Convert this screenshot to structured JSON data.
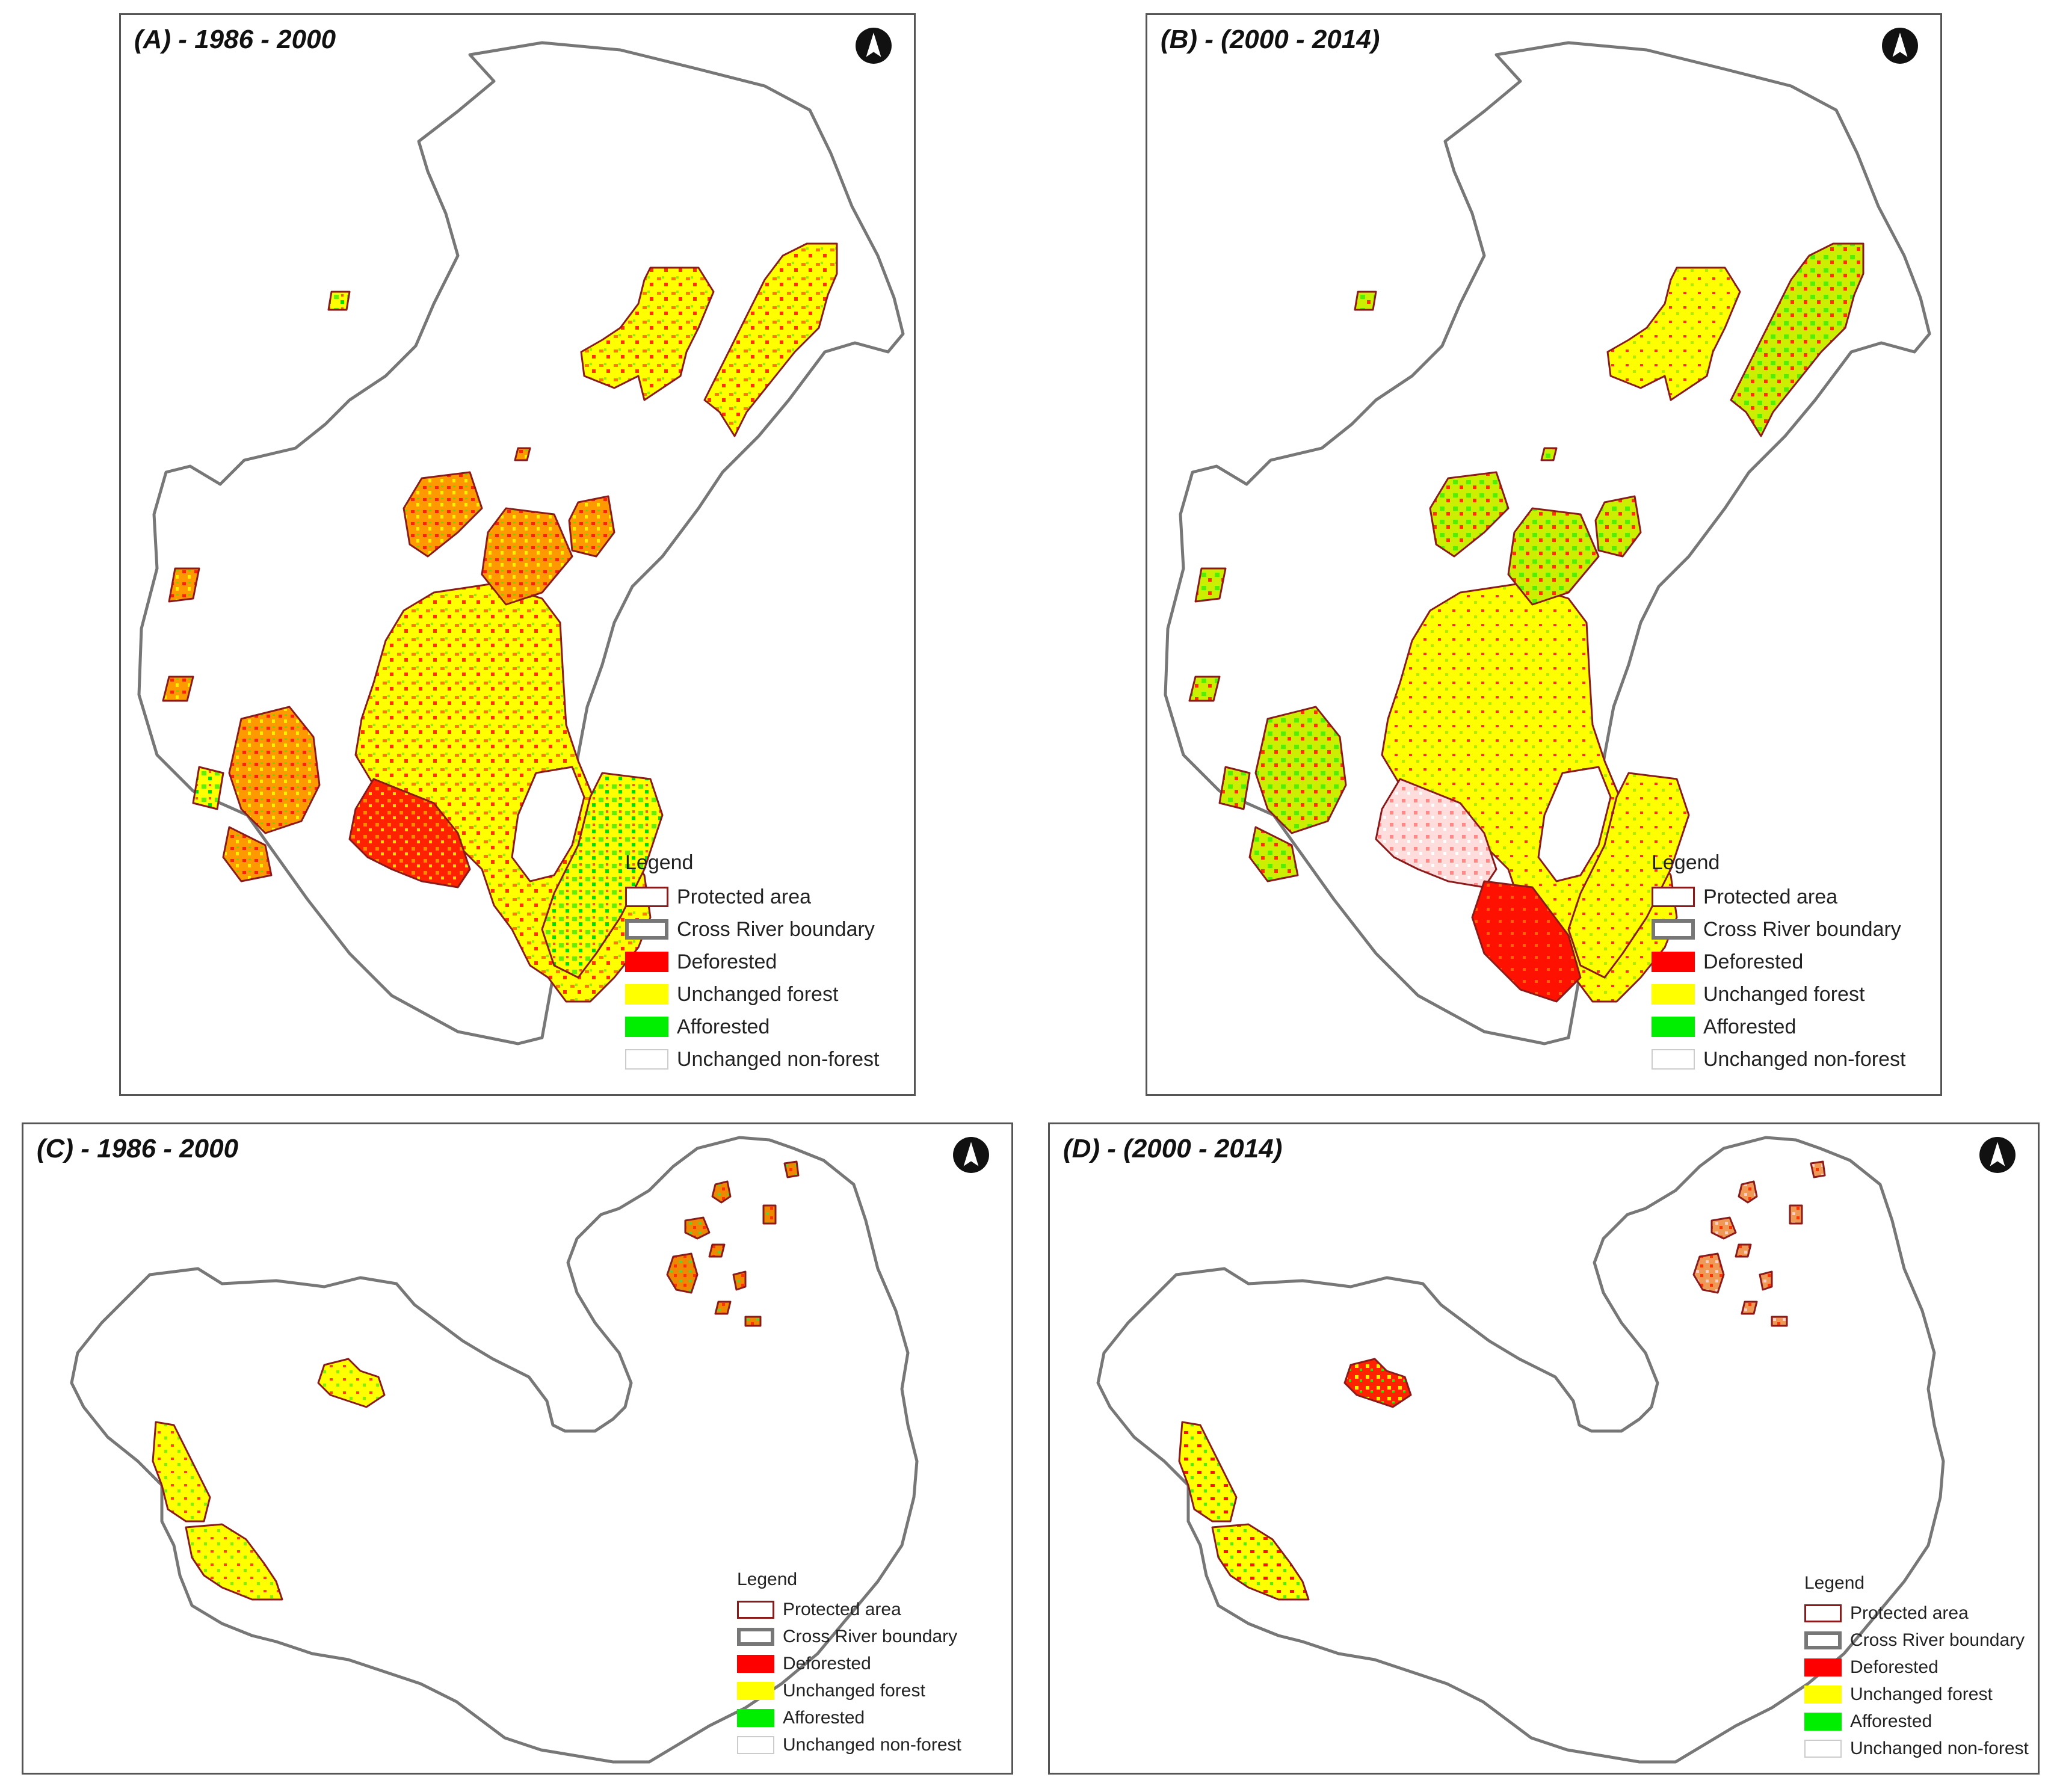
{
  "colors": {
    "deforested": "#ff0000",
    "unchanged_forest": "#ffff00",
    "afforested": "#00ee00",
    "unchanged_non_forest": "#ffffff",
    "protected_area_outline": "#8b1a1a",
    "boundary": "#777777"
  },
  "legend": {
    "title": "Legend",
    "items": [
      {
        "label": "Protected area",
        "kind": "protected"
      },
      {
        "label": "Cross River boundary",
        "kind": "boundary"
      },
      {
        "label": "Deforested",
        "kind": "deforested"
      },
      {
        "label": "Unchanged forest",
        "kind": "unchanged_forest"
      },
      {
        "label": "Afforested",
        "kind": "afforested"
      },
      {
        "label": "Unchanged non-forest",
        "kind": "nonforest"
      }
    ]
  },
  "panels": [
    {
      "id": "A",
      "title": "(A) - 1986 - 2000",
      "north_icon": "north-arrow-icon"
    },
    {
      "id": "B",
      "title": "(B) - (2000 - 2014)",
      "north_icon": "north-arrow-icon"
    },
    {
      "id": "C",
      "title": "(C) - 1986 - 2000",
      "north_icon": "north-arrow-icon"
    },
    {
      "id": "D",
      "title": "(D) - (2000 - 2014)",
      "north_icon": "north-arrow-icon"
    }
  ]
}
